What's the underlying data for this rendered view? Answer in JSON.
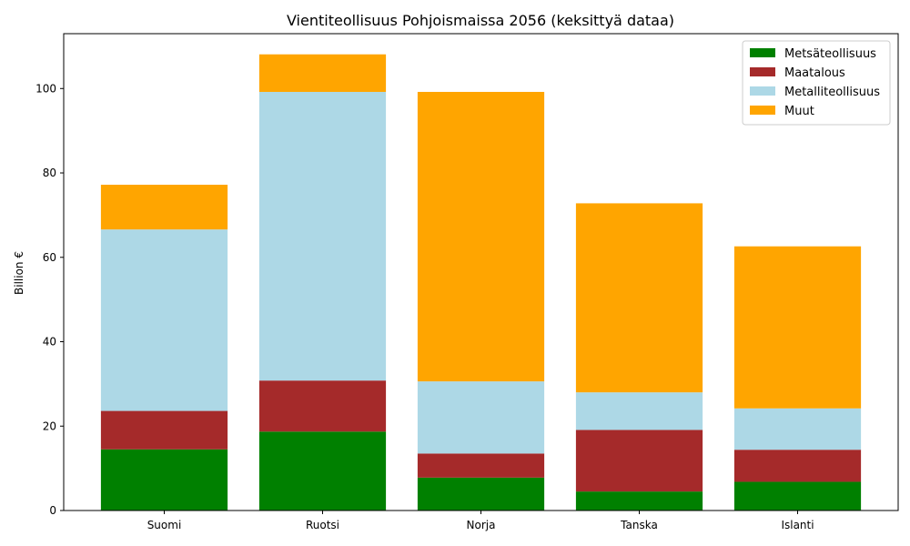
{
  "chart_data": {
    "type": "bar",
    "stacked": true,
    "title": "Vientiteollisuus Pohjoismaissa 2056 (keksittyä dataa)",
    "xlabel": "",
    "ylabel": "Billion €",
    "ylim": [
      0,
      113
    ],
    "yticks": [
      0,
      20,
      40,
      60,
      80,
      100
    ],
    "categories": [
      "Suomi",
      "Ruotsi",
      "Norja",
      "Tanska",
      "Islanti"
    ],
    "series": [
      {
        "name": "Metsäteollisuus",
        "color": "#008000",
        "values": [
          14.5,
          18.7,
          7.8,
          4.5,
          6.8
        ]
      },
      {
        "name": "Maatalous",
        "color": "#a52a2a",
        "values": [
          9.1,
          12.1,
          5.7,
          14.6,
          7.6
        ]
      },
      {
        "name": "Metalliteollisuus",
        "color": "#add8e6",
        "values": [
          43.0,
          68.4,
          17.1,
          8.9,
          9.8
        ]
      },
      {
        "name": "Muut",
        "color": "#ffa500",
        "values": [
          10.6,
          8.9,
          68.6,
          44.8,
          38.4
        ]
      }
    ],
    "legend": "top-right",
    "grid": false
  }
}
